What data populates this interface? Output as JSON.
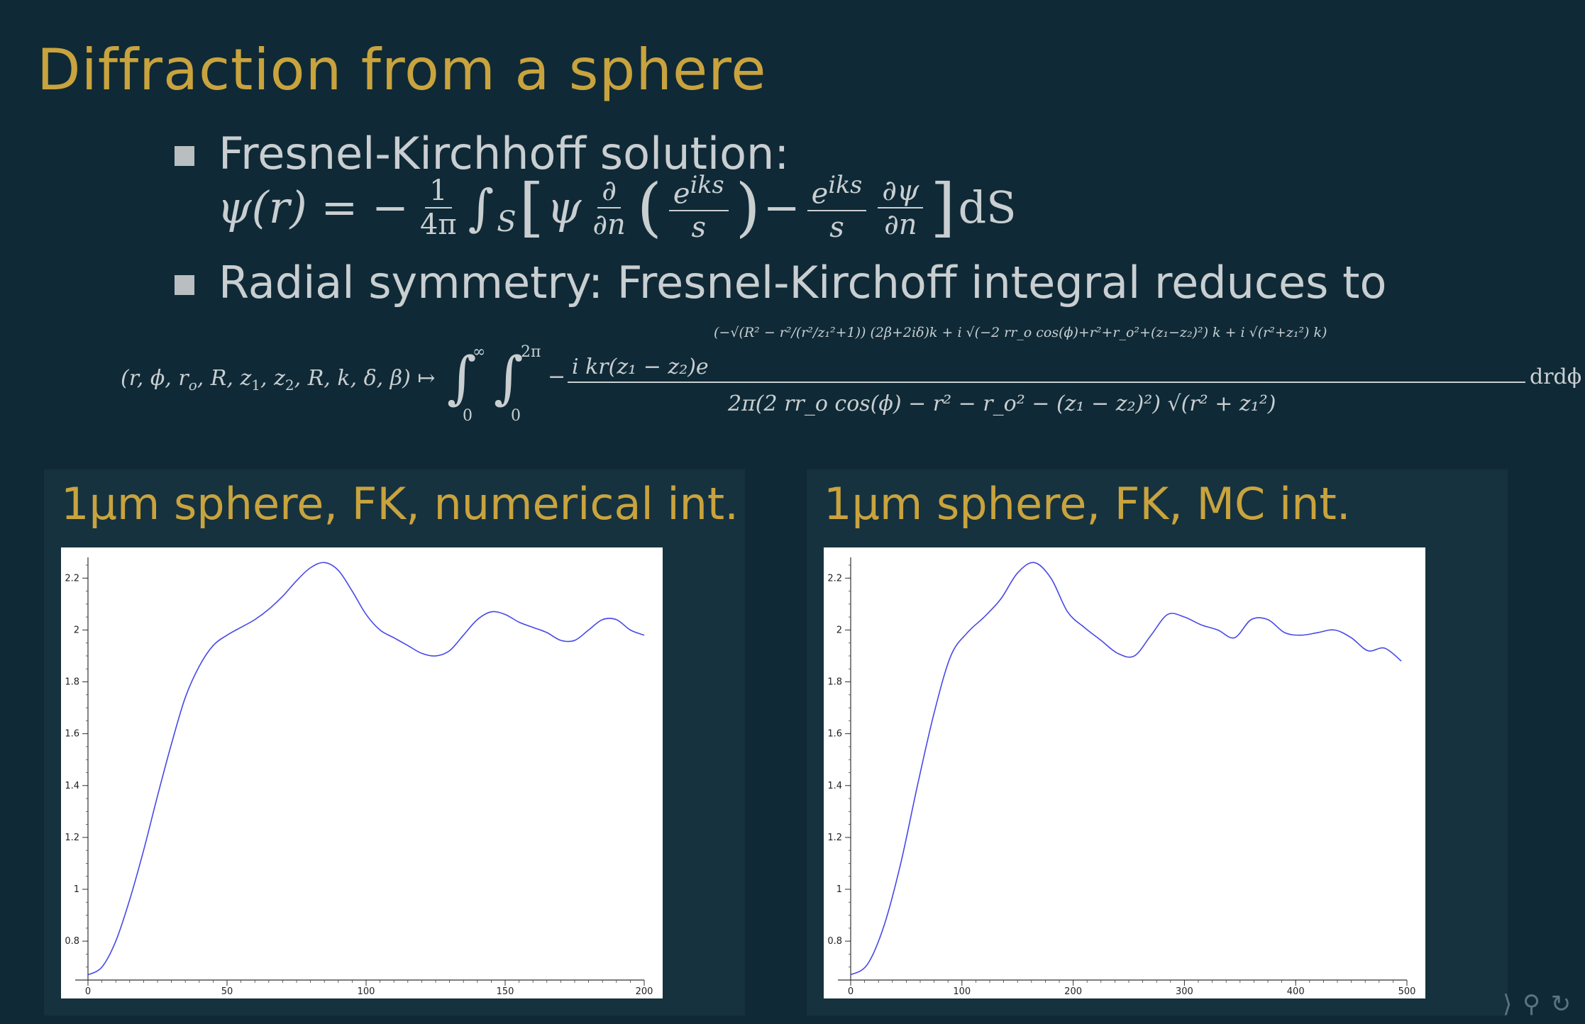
{
  "slide": {
    "title": "Diffraction from a sphere",
    "bullets": [
      "Fresnel-Kirchhoff solution:",
      "Radial symmetry: Fresnel-Kirchoff integral reduces to"
    ],
    "equation1": {
      "lhs": "ψ(r) = −",
      "coef_num": "1",
      "coef_den": "4π",
      "integral": "∫",
      "sub": "S",
      "body_a": "ψ",
      "d_num": "∂",
      "d_den": "∂n",
      "e_num": "e",
      "e_sup": "iks",
      "e_den": "s",
      "minus": "−",
      "psi_num": "∂ψ",
      "psi_den": "∂n",
      "dS": "dS"
    },
    "equation2": {
      "args": "(r, ϕ, r",
      "args_tail": ", R, z",
      "mapsto": "↦",
      "numerator": "i kr(z₁ − z₂)e",
      "exponent": "(−√(R² − r²/(r²/z₁²+1)) (2β+2iδ)k + i √(−2 rr_o cos(ϕ)+r²+r_o²+(z₁−z₂)²) k + i √(r²+z₁²) k)",
      "denominator": "2π(2 rr_o cos(ϕ) − r² − r_o² − (z₁ − z₂)²) √(r² + z₁²)",
      "limits_outer": [
        "0",
        "∞"
      ],
      "limits_inner": [
        "0",
        "2π"
      ],
      "tail": "drdϕ"
    },
    "nav_symbols": "⟩ ⚲ ↻"
  },
  "panels": [
    {
      "title": "1μm sphere, FK, numerical int."
    },
    {
      "title": "1μm sphere, FK, MC int."
    }
  ],
  "chart_data": [
    {
      "type": "line",
      "xlim": [
        0,
        200
      ],
      "ylim": [
        0.65,
        2.28
      ],
      "x_ticks": [
        "0",
        "50",
        "100",
        "150",
        "200"
      ],
      "x_tick_values": [
        0,
        50,
        100,
        150,
        200
      ],
      "y_ticks": [
        "0.8",
        "1",
        "1.2",
        "1.4",
        "1.6",
        "1.8",
        "2",
        "2.2"
      ],
      "y_tick_values": [
        0.8,
        1.0,
        1.2,
        1.4,
        1.6,
        1.8,
        2.0,
        2.2
      ],
      "line_color": "#4848e8",
      "series": [
        {
          "x": [
            0,
            5,
            10,
            15,
            20,
            25,
            30,
            35,
            40,
            45,
            50,
            55,
            60,
            65,
            70,
            75,
            80,
            85,
            90,
            95,
            100,
            105,
            110,
            115,
            120,
            125,
            130,
            135,
            140,
            145,
            150,
            155,
            160,
            165,
            170,
            175,
            180,
            185,
            190,
            195,
            200
          ],
          "y": [
            0.67,
            0.7,
            0.8,
            0.96,
            1.15,
            1.36,
            1.56,
            1.74,
            1.86,
            1.94,
            1.98,
            2.01,
            2.04,
            2.08,
            2.13,
            2.19,
            2.24,
            2.26,
            2.23,
            2.15,
            2.06,
            2.0,
            1.97,
            1.94,
            1.91,
            1.9,
            1.92,
            1.98,
            2.04,
            2.07,
            2.06,
            2.03,
            2.01,
            1.99,
            1.96,
            1.96,
            2.0,
            2.04,
            2.04,
            2.0,
            1.98
          ]
        }
      ]
    },
    {
      "type": "line",
      "xlim": [
        0,
        500
      ],
      "ylim": [
        0.65,
        2.28
      ],
      "x_ticks": [
        "0",
        "100",
        "200",
        "300",
        "400",
        "500"
      ],
      "x_tick_values": [
        0,
        100,
        200,
        300,
        400,
        500
      ],
      "y_ticks": [
        "0.8",
        "1",
        "1.2",
        "1.4",
        "1.6",
        "1.8",
        "2",
        "2.2"
      ],
      "y_tick_values": [
        0.8,
        1.0,
        1.2,
        1.4,
        1.6,
        1.8,
        2.0,
        2.2
      ],
      "line_color": "#4848e8",
      "series": [
        {
          "x": [
            0,
            15,
            30,
            45,
            60,
            75,
            90,
            105,
            120,
            135,
            150,
            165,
            180,
            195,
            210,
            225,
            240,
            255,
            270,
            285,
            300,
            315,
            330,
            345,
            360,
            375,
            390,
            405,
            420,
            435,
            450,
            465,
            480,
            495
          ],
          "y": [
            0.67,
            0.71,
            0.86,
            1.1,
            1.4,
            1.68,
            1.9,
            1.99,
            2.05,
            2.12,
            2.22,
            2.26,
            2.2,
            2.07,
            2.01,
            1.96,
            1.91,
            1.9,
            1.98,
            2.06,
            2.05,
            2.02,
            2.0,
            1.97,
            2.04,
            2.04,
            1.99,
            1.98,
            1.99,
            2.0,
            1.97,
            1.92,
            1.93,
            1.88
          ]
        }
      ]
    }
  ]
}
